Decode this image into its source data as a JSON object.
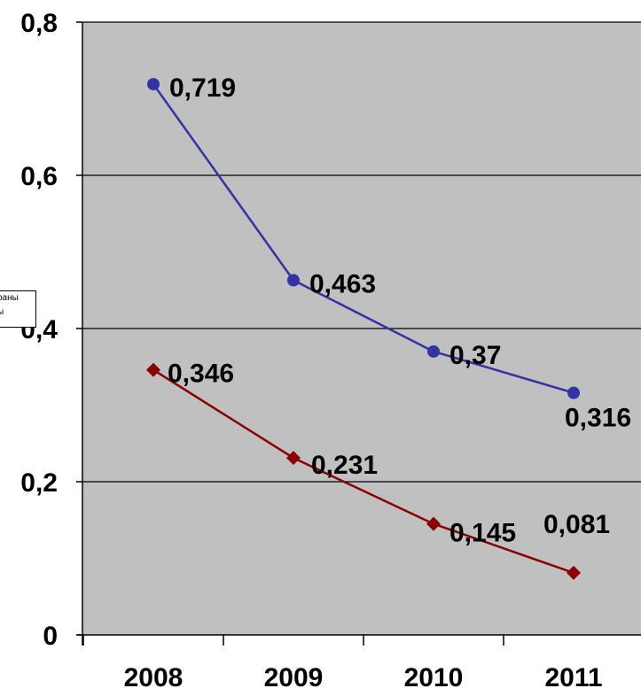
{
  "chart_data": {
    "type": "line",
    "categories": [
      "2008",
      "2009",
      "2010",
      "2011"
    ],
    "ylim": [
      0,
      0.8
    ],
    "yticks": [
      0,
      0.2,
      0.4,
      0.6,
      0.8
    ],
    "ytick_labels": [
      "0",
      "0,2",
      "0,4",
      "0,6",
      "0,8"
    ],
    "grid": true,
    "plot_background": "#c0c0c0",
    "series": [
      {
        "values": [
          0.719,
          0.463,
          0.37,
          0.316
        ],
        "labels": [
          "0,719",
          "0,463",
          "0,37",
          "0,316"
        ],
        "color": "#3333a6",
        "marker": "circle"
      },
      {
        "values": [
          0.346,
          0.231,
          0.145,
          0.081
        ],
        "labels": [
          "0,346",
          "0,231",
          "0,145",
          "0,081"
        ],
        "color": "#8b0000",
        "marker": "diamond"
      }
    ]
  },
  "legend_fragment": {
    "line1": "раны",
    "line2": "ы"
  }
}
